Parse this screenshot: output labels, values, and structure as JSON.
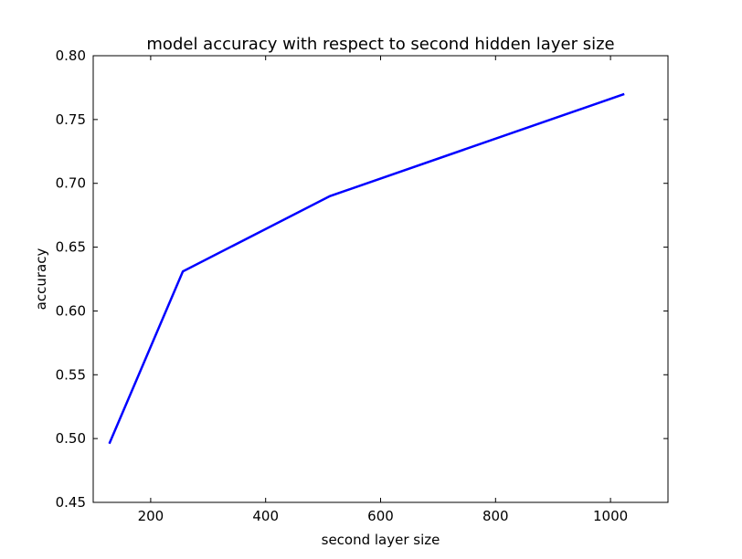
{
  "chart_data": {
    "type": "line",
    "title": "model accuracy with respect to second hidden layer size",
    "xlabel": "second layer size",
    "ylabel": "accuracy",
    "xlim": [
      100,
      1100
    ],
    "ylim": [
      0.45,
      0.8
    ],
    "xticks": [
      200,
      400,
      600,
      800,
      1000
    ],
    "xtick_labels": [
      "200",
      "400",
      "600",
      "800",
      "1000"
    ],
    "yticks": [
      0.45,
      0.5,
      0.55,
      0.6,
      0.65,
      0.7,
      0.75,
      0.8
    ],
    "ytick_labels": [
      "0.45",
      "0.50",
      "0.55",
      "0.60",
      "0.65",
      "0.70",
      "0.75",
      "0.80"
    ],
    "grid": false,
    "series": [
      {
        "x": [
          128,
          256,
          512,
          1024
        ],
        "y": [
          0.496,
          0.631,
          0.69,
          0.77
        ],
        "color": "#0000ff"
      }
    ]
  }
}
